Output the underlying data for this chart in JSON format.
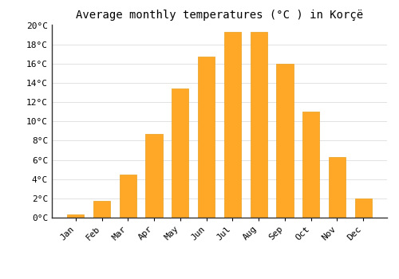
{
  "title": "Average monthly temperatures (°C ) in Korçë",
  "months": [
    "Jan",
    "Feb",
    "Mar",
    "Apr",
    "May",
    "Jun",
    "Jul",
    "Aug",
    "Sep",
    "Oct",
    "Nov",
    "Dec"
  ],
  "values": [
    0.3,
    1.7,
    4.5,
    8.7,
    13.4,
    16.7,
    19.3,
    19.3,
    16.0,
    11.0,
    6.3,
    2.0
  ],
  "bar_color": "#FFA726",
  "bar_edge_color": "#E8A020",
  "ylim": [
    0,
    20
  ],
  "yticks": [
    0,
    2,
    4,
    6,
    8,
    10,
    12,
    14,
    16,
    18,
    20
  ],
  "ytick_labels": [
    "0°C",
    "2°C",
    "4°C",
    "6°C",
    "8°C",
    "10°C",
    "12°C",
    "14°C",
    "16°C",
    "18°C",
    "20°C"
  ],
  "background_color": "#ffffff",
  "grid_color": "#dddddd",
  "title_fontsize": 10,
  "tick_fontsize": 8,
  "font_family": "monospace",
  "bar_width": 0.65
}
